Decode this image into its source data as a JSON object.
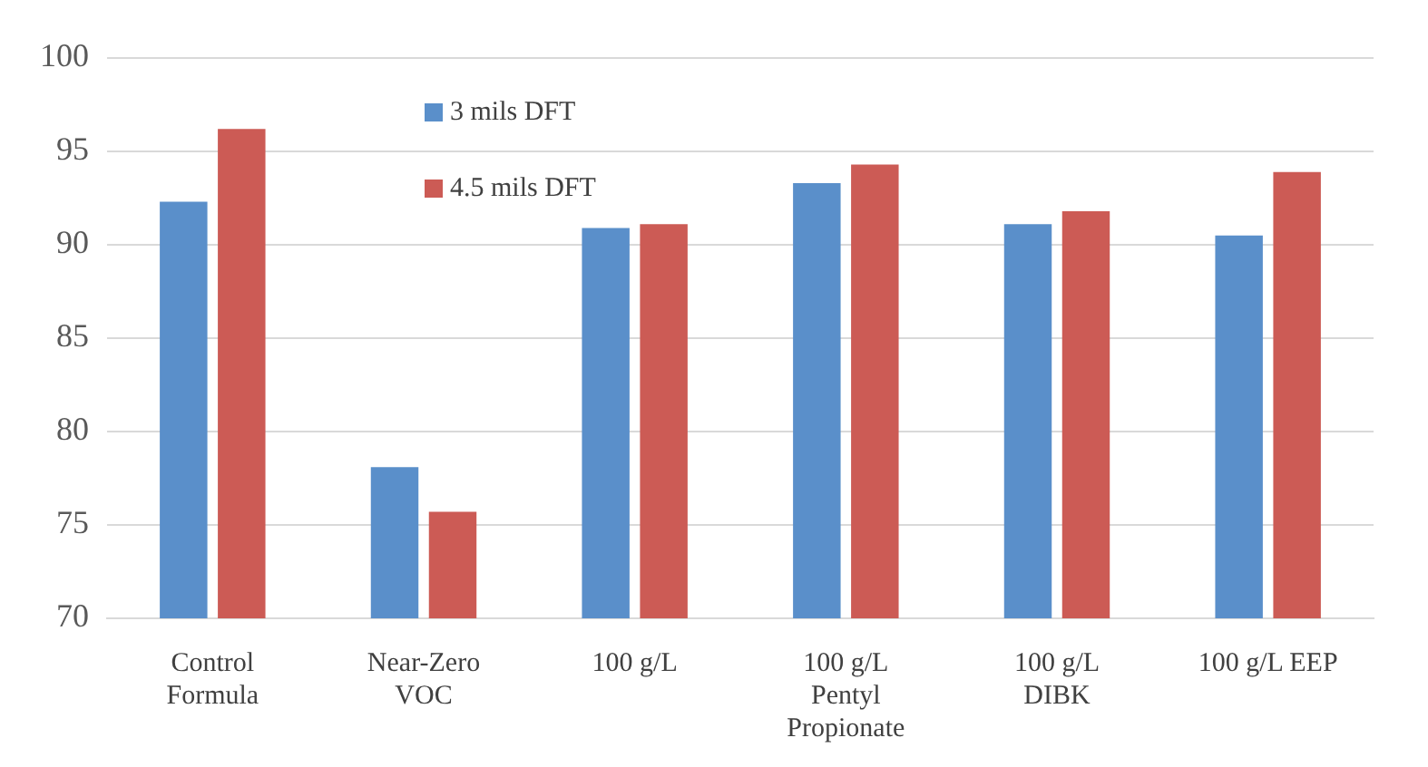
{
  "chart_data": {
    "type": "bar",
    "categories": [
      "Control Formula",
      "Near-Zero VOC",
      "100 g/L",
      "100 g/L Pentyl Propionate",
      "100 g/L DIBK",
      "100 g/L EEP"
    ],
    "series": [
      {
        "name": "3 mils DFT",
        "color": "#5a8fca",
        "values": [
          92.3,
          78.1,
          90.9,
          93.3,
          91.1,
          90.5
        ]
      },
      {
        "name": "4.5 mils DFT",
        "color": "#cc5b55",
        "values": [
          96.2,
          75.7,
          91.1,
          94.3,
          91.8,
          93.9
        ]
      }
    ],
    "ylim": [
      70,
      100
    ],
    "yticks": [
      70,
      75,
      80,
      85,
      90,
      95,
      100
    ],
    "grid": "y",
    "legend": "top left"
  }
}
